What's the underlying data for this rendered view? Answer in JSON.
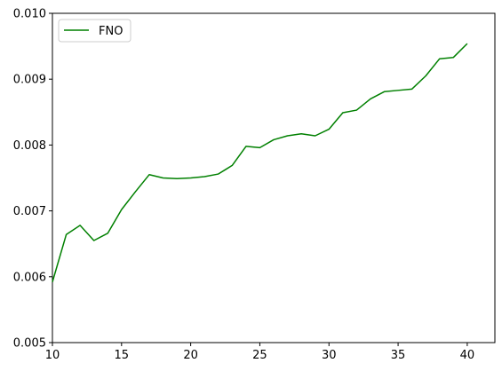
{
  "chart_data": {
    "type": "line",
    "title": "",
    "xlabel": "",
    "ylabel": "",
    "xlim": [
      10,
      42
    ],
    "ylim": [
      0.005,
      0.01
    ],
    "x_ticks": [
      10,
      15,
      20,
      25,
      30,
      35,
      40
    ],
    "x_tick_labels": [
      "10",
      "15",
      "20",
      "25",
      "30",
      "35",
      "40"
    ],
    "y_ticks": [
      0.005,
      0.006,
      0.007,
      0.008,
      0.009,
      0.01
    ],
    "y_tick_labels": [
      "0.005",
      "0.006",
      "0.007",
      "0.008",
      "0.009",
      "0.010"
    ],
    "grid": false,
    "legend": {
      "position": "upper-left",
      "entries": [
        "FNO"
      ]
    },
    "series": [
      {
        "name": "FNO",
        "color": "#008000",
        "x": [
          10,
          11,
          12,
          13,
          14,
          15,
          16,
          17,
          18,
          19,
          20,
          21,
          22,
          23,
          24,
          25,
          26,
          27,
          28,
          29,
          30,
          31,
          32,
          33,
          34,
          35,
          36,
          37,
          38,
          39,
          40
        ],
        "y": [
          0.00592,
          0.00664,
          0.00678,
          0.00655,
          0.00666,
          0.00702,
          0.00729,
          0.00755,
          0.0075,
          0.00749,
          0.0075,
          0.00752,
          0.00756,
          0.00769,
          0.00798,
          0.00796,
          0.00808,
          0.00814,
          0.00817,
          0.00814,
          0.00824,
          0.00849,
          0.00853,
          0.0087,
          0.00881,
          0.00883,
          0.00885,
          0.00905,
          0.00931,
          0.00933,
          0.00954
        ]
      }
    ]
  }
}
